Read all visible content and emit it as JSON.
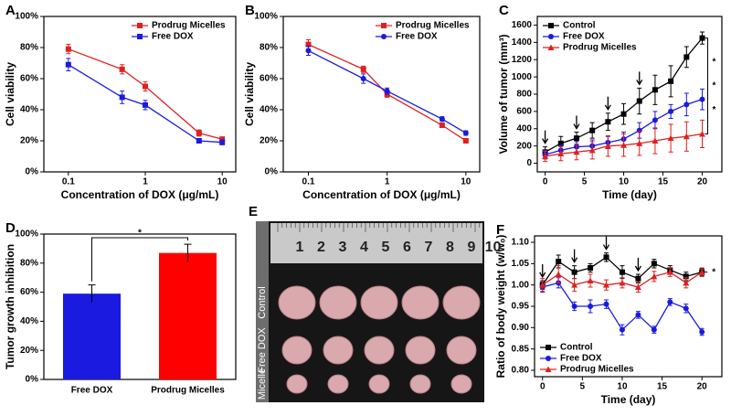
{
  "chart_data": [
    {
      "type": "line",
      "label": "A",
      "xlabel": "Concentration of DOX (μg/mL)",
      "ylabel": "Cell viability",
      "xscale": "log",
      "x": [
        0.1,
        0.5,
        1,
        5,
        10
      ],
      "xlim": [
        0.048,
        15
      ],
      "xticks": [
        0.1,
        1,
        10
      ],
      "ylim": [
        0,
        100
      ],
      "yticks": [
        {
          "value": 0,
          "label": "0%"
        },
        {
          "value": 20,
          "label": "20%"
        },
        {
          "value": 40,
          "label": "40%"
        },
        {
          "value": 60,
          "label": "60%"
        },
        {
          "value": 80,
          "label": "80%"
        },
        {
          "value": 100,
          "label": "100%"
        }
      ],
      "legend": "upper right",
      "series": [
        {
          "name": "Prodrug Micelles",
          "color": "#e02020",
          "marker": "square",
          "values": [
            79,
            66,
            55,
            25,
            21
          ],
          "errors": [
            3,
            3,
            3,
            2,
            1.5
          ]
        },
        {
          "name": "Free DOX",
          "color": "#1a1ae0",
          "marker": "square",
          "values": [
            69,
            48,
            43,
            20,
            19
          ],
          "errors": [
            4,
            4,
            3,
            1.5,
            1.5
          ]
        }
      ]
    },
    {
      "type": "line",
      "label": "B",
      "xlabel": "Concentration of DOX (μg/mL)",
      "ylabel": "Cell viability",
      "xscale": "log",
      "x": [
        0.1,
        0.5,
        1,
        5,
        10
      ],
      "xlim": [
        0.048,
        15
      ],
      "xticks": [
        0.1,
        1,
        10
      ],
      "ylim": [
        0,
        100
      ],
      "yticks": [
        {
          "value": 0,
          "label": "0%"
        },
        {
          "value": 20,
          "label": "20%"
        },
        {
          "value": 40,
          "label": "40%"
        },
        {
          "value": 60,
          "label": "60%"
        },
        {
          "value": 80,
          "label": "80%"
        },
        {
          "value": 100,
          "label": "100%"
        }
      ],
      "legend": "upper right",
      "series": [
        {
          "name": "Prodrug Micelles",
          "color": "#e02020",
          "marker": "square",
          "values": [
            82,
            66,
            50,
            30,
            20
          ],
          "errors": [
            3,
            2,
            2,
            1.5,
            1.5
          ]
        },
        {
          "name": "Free DOX",
          "color": "#1a1ae0",
          "marker": "circle",
          "values": [
            78,
            60,
            52,
            34,
            25
          ],
          "errors": [
            3,
            3,
            2,
            1.5,
            1.5
          ]
        }
      ]
    },
    {
      "type": "line",
      "label": "C",
      "xlabel": "Time (day)",
      "ylabel": "Volume of tumor (mm³)",
      "x": [
        0,
        2,
        4,
        6,
        8,
        10,
        12,
        14,
        16,
        18,
        20
      ],
      "xlim": [
        -1,
        22.5
      ],
      "xticks": [
        0,
        5,
        10,
        15,
        20
      ],
      "ylim": [
        -100,
        1700
      ],
      "yticks": [
        0,
        200,
        400,
        600,
        800,
        1000,
        1200,
        1400,
        1600
      ],
      "legend": "upper left",
      "annotations": [
        "*",
        "*",
        "*"
      ],
      "series": [
        {
          "name": "Control",
          "color": "#000000",
          "marker": "square",
          "values": [
            130,
            230,
            290,
            380,
            480,
            570,
            720,
            850,
            950,
            1230,
            1450
          ],
          "errors": [
            60,
            80,
            70,
            90,
            100,
            120,
            150,
            170,
            180,
            120,
            70
          ]
        },
        {
          "name": "Free DOX",
          "color": "#1a1ae0",
          "marker": "circle",
          "values": [
            100,
            150,
            190,
            200,
            240,
            280,
            380,
            500,
            600,
            680,
            740
          ],
          "errors": [
            50,
            60,
            60,
            70,
            70,
            80,
            90,
            100,
            80,
            130,
            120
          ]
        },
        {
          "name": "Prodrug Micelles",
          "color": "#e02020",
          "marker": "triangle",
          "values": [
            80,
            110,
            130,
            150,
            200,
            210,
            230,
            260,
            290,
            310,
            340
          ],
          "errors": [
            60,
            80,
            90,
            100,
            120,
            130,
            140,
            150,
            160,
            170,
            160
          ]
        }
      ]
    },
    {
      "type": "bar",
      "label": "D",
      "ylabel": "Tumor growth inhibition",
      "categories": [
        "Free DOX",
        "Prodrug Micelles"
      ],
      "values": [
        59,
        87
      ],
      "errors": [
        6,
        6
      ],
      "colors": [
        "#1a1ae0",
        "#ff0000"
      ],
      "ylim": [
        0,
        100
      ],
      "yticks": [
        {
          "value": 0,
          "label": "0%"
        },
        {
          "value": 20,
          "label": "20%"
        },
        {
          "value": 40,
          "label": "40%"
        },
        {
          "value": 60,
          "label": "60%"
        },
        {
          "value": 80,
          "label": "80%"
        },
        {
          "value": 100,
          "label": "100%"
        }
      ],
      "annotations": [
        "*"
      ]
    },
    {
      "type": "line",
      "label": "F",
      "xlabel": "Time (day)",
      "ylabel": "Ratio of body weight (w/w₀)",
      "x": [
        0,
        2,
        4,
        6,
        8,
        10,
        12,
        14,
        16,
        18,
        20
      ],
      "xlim": [
        -1,
        22.5
      ],
      "xticks": [
        0,
        5,
        10,
        15,
        20
      ],
      "ylim": [
        0.785,
        1.115
      ],
      "yticks": [
        {
          "value": 0.8,
          "label": "0.80"
        },
        {
          "value": 0.85,
          "label": "0.85"
        },
        {
          "value": 0.9,
          "label": "0.90"
        },
        {
          "value": 0.95,
          "label": "0.95"
        },
        {
          "value": 1.0,
          "label": "1.00"
        },
        {
          "value": 1.05,
          "label": "1.05"
        },
        {
          "value": 1.1,
          "label": "1.10"
        }
      ],
      "legend": "lower left",
      "annotations": [
        "*"
      ],
      "series": [
        {
          "name": "Control",
          "color": "#000000",
          "marker": "square",
          "values": [
            1.0,
            1.055,
            1.03,
            1.04,
            1.065,
            1.03,
            1.015,
            1.05,
            1.035,
            1.02,
            1.03
          ],
          "errors": [
            0.01,
            0.015,
            0.015,
            0.01,
            0.01,
            0.015,
            0.01,
            0.01,
            0.01,
            0.01,
            0.008
          ]
        },
        {
          "name": "Free DOX",
          "color": "#1a1ae0",
          "marker": "circle",
          "values": [
            0.995,
            1.005,
            0.95,
            0.95,
            0.955,
            0.895,
            0.93,
            0.895,
            0.96,
            0.945,
            0.89
          ],
          "errors": [
            0.012,
            0.012,
            0.01,
            0.015,
            0.01,
            0.012,
            0.008,
            0.008,
            0.008,
            0.01,
            0.008
          ]
        },
        {
          "name": "Prodrug Micelles",
          "color": "#e02020",
          "marker": "triangle",
          "values": [
            1.0,
            1.025,
            1.0,
            1.01,
            1.0,
            1.005,
            0.995,
            1.02,
            1.03,
            1.005,
            1.03
          ],
          "errors": [
            0.015,
            0.02,
            0.015,
            0.015,
            0.012,
            0.012,
            0.012,
            0.012,
            0.01,
            0.012,
            0.01
          ]
        }
      ]
    }
  ],
  "photo": {
    "label": "E",
    "ruler": [
      "1",
      "2",
      "3",
      "4",
      "5",
      "6",
      "7",
      "8",
      "9",
      "10"
    ],
    "rows": [
      "Control",
      "Free DOX",
      "Micelle"
    ]
  }
}
